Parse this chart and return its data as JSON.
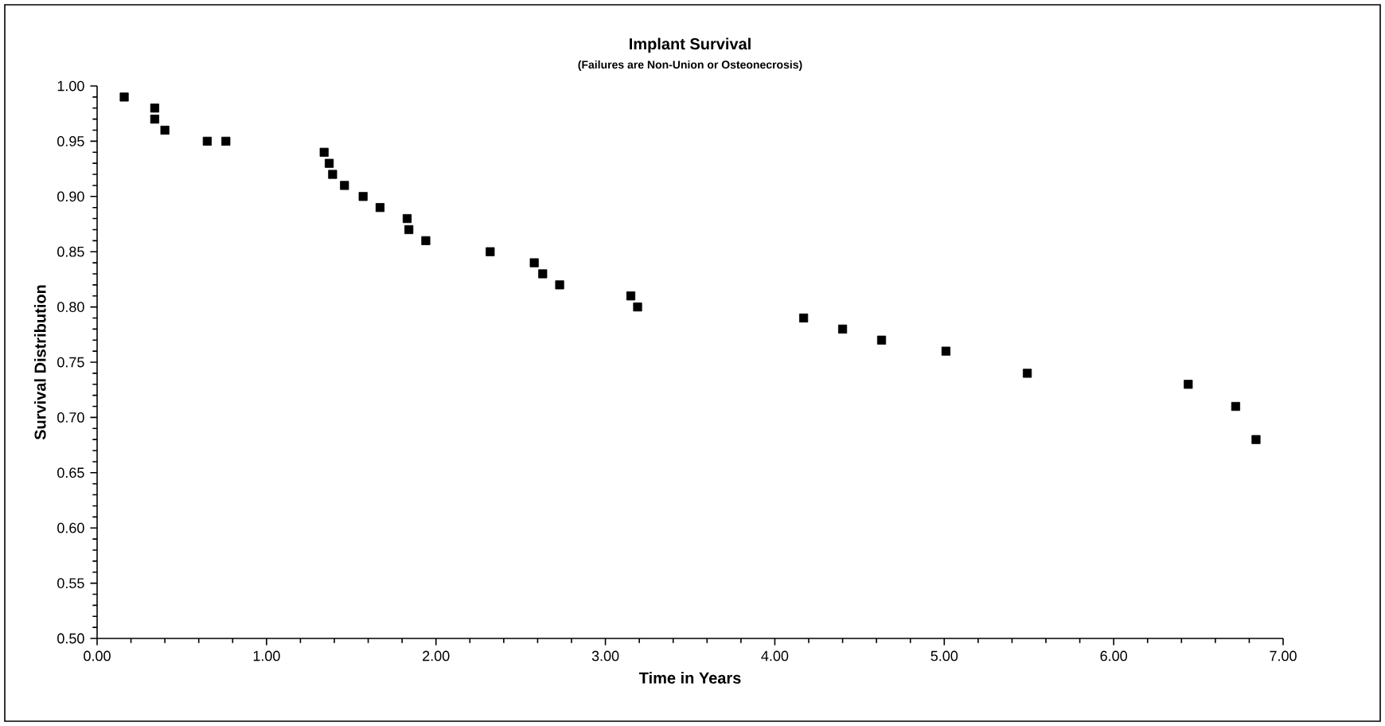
{
  "chart_data": {
    "type": "scatter",
    "title": "Implant Survival",
    "subtitle": "(Failures are Non-Union or Osteonecrosis)",
    "xlabel": "Time in Years",
    "ylabel": "Survival Distribution",
    "series": [
      {
        "color": "#000000",
        "x": [
          0.16,
          0.34,
          0.34,
          0.4,
          0.65,
          0.76,
          1.34,
          1.37,
          1.39,
          1.46,
          1.57,
          1.67,
          1.83,
          1.84,
          1.94,
          2.32,
          2.58,
          2.63,
          2.73,
          3.15,
          3.19,
          4.17,
          4.4,
          4.63,
          5.01,
          5.49,
          6.44,
          6.72,
          6.84
        ],
        "values": [
          0.99,
          0.98,
          0.97,
          0.96,
          0.95,
          0.95,
          0.94,
          0.93,
          0.92,
          0.91,
          0.9,
          0.89,
          0.88,
          0.87,
          0.86,
          0.85,
          0.84,
          0.83,
          0.82,
          0.81,
          0.8,
          0.79,
          0.78,
          0.77,
          0.76,
          0.74,
          0.73,
          0.71,
          0.68
        ]
      }
    ],
    "xlim": [
      0,
      7
    ],
    "ylim": [
      0.5,
      1.0
    ],
    "xticks": [
      {
        "value": 0,
        "label": "0.00"
      },
      {
        "value": 1,
        "label": "1.00"
      },
      {
        "value": 2,
        "label": "2.00"
      },
      {
        "value": 3,
        "label": "3.00"
      },
      {
        "value": 4,
        "label": "4.00"
      },
      {
        "value": 5,
        "label": "5.00"
      },
      {
        "value": 6,
        "label": "6.00"
      },
      {
        "value": 7,
        "label": "7.00"
      }
    ],
    "yticks": [
      {
        "value": 0.5,
        "label": "0.50"
      },
      {
        "value": 0.55,
        "label": "0.55"
      },
      {
        "value": 0.6,
        "label": "0.60"
      },
      {
        "value": 0.65,
        "label": "0.65"
      },
      {
        "value": 0.7,
        "label": "0.70"
      },
      {
        "value": 0.75,
        "label": "0.75"
      },
      {
        "value": 0.8,
        "label": "0.80"
      },
      {
        "value": 0.85,
        "label": "0.85"
      },
      {
        "value": 0.9,
        "label": "0.90"
      },
      {
        "value": 0.95,
        "label": "0.95"
      },
      {
        "value": 1.0,
        "label": "1.00"
      }
    ],
    "grid": false,
    "legend": false,
    "marker": "square"
  }
}
